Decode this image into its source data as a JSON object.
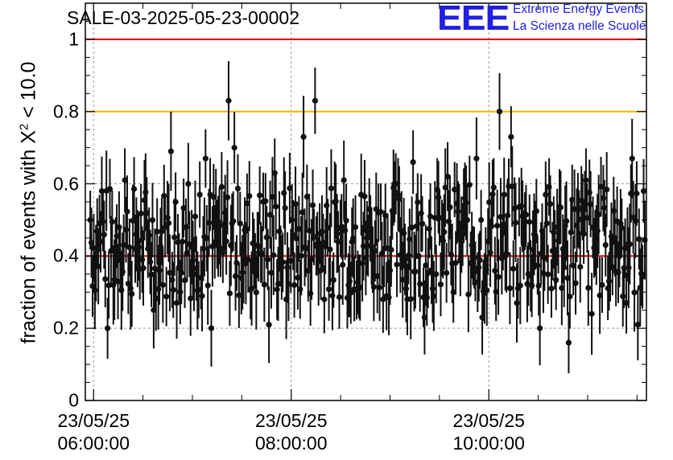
{
  "header": {
    "title": "SALE-03-2025-05-23-00002",
    "logo_mark": "EEE",
    "logo_line1": "Extreme Energy Events",
    "logo_line2": "La Scienza nelle Scuole",
    "logo_color": "#1f1fe0"
  },
  "chart_data": {
    "type": "scatter",
    "title": "SALE-03-2025-05-23-00002",
    "ylabel_main": "fraction of events with X",
    "ylabel_sup": "2",
    "ylabel_tail": " < 10.0",
    "x_time_range": [
      "23/05/25 05:55",
      "23/05/25 11:35"
    ],
    "x_ticks": [
      {
        "date": "23/05/25",
        "time": "06:00:00",
        "minutes": 0
      },
      {
        "date": "23/05/25",
        "time": "08:00:00",
        "minutes": 120
      },
      {
        "date": "23/05/25",
        "time": "10:00:00",
        "minutes": 240
      }
    ],
    "ylim": [
      0,
      1.1
    ],
    "y_ticks": [
      "0",
      "0.2",
      "0.4",
      "0.6",
      "0.8",
      "1"
    ],
    "grid": true,
    "reference_lines": [
      {
        "y": 1.0,
        "color": "#e00000"
      },
      {
        "y": 0.8,
        "color": "#f5b400"
      },
      {
        "y": 0.4,
        "color": "#d40000"
      }
    ],
    "series": [
      {
        "marker_color": "#111111",
        "error_bar_typical": 0.09,
        "points_minutes": [
          -2.0,
          1.5,
          5.0,
          8.5,
          12.0,
          15.5,
          19.0,
          22.5,
          26.0,
          29.5,
          33.0,
          36.5,
          40.0,
          43.5,
          47.0,
          50.5,
          54.0,
          57.5,
          61.0,
          64.5,
          68.0,
          71.5,
          75.0,
          78.5,
          82.0,
          85.5,
          89.0,
          92.5,
          96.0,
          99.5,
          103.0,
          106.5,
          110.0,
          113.5,
          117.0,
          120.5,
          124.0,
          127.5,
          131.0,
          134.5,
          138.0,
          141.5,
          145.0,
          148.5,
          152.0,
          155.5,
          159.0,
          162.5,
          166.0,
          169.5,
          173.0,
          176.5,
          180.0,
          183.5,
          187.0,
          190.5,
          194.0,
          197.5,
          201.0,
          204.5,
          208.0,
          211.5,
          215.0,
          218.5,
          222.0,
          225.5,
          229.0,
          232.5,
          236.0,
          239.5,
          243.0,
          246.5,
          250.0,
          253.5,
          257.0,
          260.5,
          264.0,
          267.5,
          271.0,
          274.5,
          278.0,
          281.5,
          285.0,
          288.5,
          292.0,
          295.5,
          299.0,
          302.5,
          306.0,
          309.5,
          313.0,
          316.5,
          320.0,
          323.5,
          327.0,
          330.5,
          334.0,
          337.5
        ],
        "points_values": [
          0.5,
          0.38,
          0.58,
          0.2,
          0.32,
          0.48,
          0.61,
          0.31,
          0.46,
          0.39,
          0.42,
          0.25,
          0.36,
          0.48,
          0.69,
          0.27,
          0.44,
          0.6,
          0.35,
          0.57,
          0.67,
          0.2,
          0.46,
          0.41,
          0.83,
          0.7,
          0.49,
          0.38,
          0.31,
          0.43,
          0.55,
          0.21,
          0.63,
          0.4,
          0.28,
          0.5,
          0.34,
          0.73,
          0.47,
          0.83,
          0.36,
          0.54,
          0.29,
          0.44,
          0.61,
          0.33,
          0.48,
          0.57,
          0.45,
          0.39,
          0.52,
          0.42,
          0.36,
          0.6,
          0.47,
          0.28,
          0.66,
          0.4,
          0.23,
          0.51,
          0.35,
          0.45,
          0.62,
          0.3,
          0.49,
          0.56,
          0.38,
          0.67,
          0.23,
          0.44,
          0.59,
          0.8,
          0.4,
          0.73,
          0.27,
          0.51,
          0.35,
          0.46,
          0.2,
          0.57,
          0.31,
          0.48,
          0.42,
          0.16,
          0.53,
          0.37,
          0.61,
          0.24,
          0.47,
          0.56,
          0.33,
          0.45,
          0.49,
          0.27,
          0.67,
          0.21,
          0.58,
          0.5
        ]
      }
    ]
  }
}
